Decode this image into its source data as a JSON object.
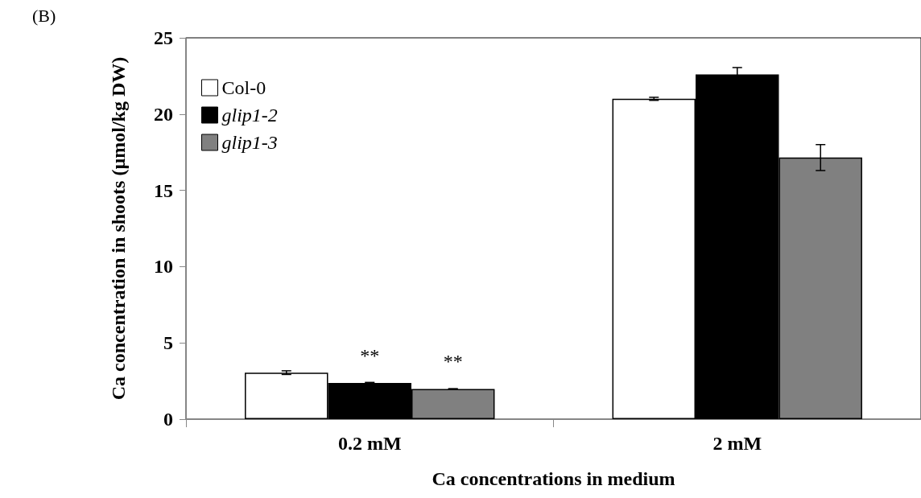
{
  "chart_data": {
    "type": "bar",
    "xlabel": "Ca concentrations in medium",
    "ylabel": "Ca concentration in shoots (µmol/kg DW)",
    "annotations": [
      "(B)"
    ],
    "categories": [
      "0.2 mM",
      "2 mM"
    ],
    "series": [
      {
        "name": "Col-0",
        "color": "#ffffff",
        "values": [
          3.05,
          21.0
        ],
        "errors": [
          0.12,
          0.1
        ]
      },
      {
        "name": "glip1-2",
        "color": "#000000",
        "values": [
          2.38,
          22.6
        ],
        "errors": [
          0.03,
          0.45
        ],
        "value_labels": [
          "**",
          null
        ]
      },
      {
        "name": "glip1-3",
        "color": "#808080",
        "values": [
          1.98,
          17.15
        ],
        "errors": [
          0.02,
          0.85
        ],
        "value_labels": [
          "**",
          null
        ]
      }
    ],
    "ylim": [
      0,
      25
    ],
    "yticks": [
      0,
      5,
      10,
      15,
      20,
      25
    ],
    "grid": false,
    "legend": "top left"
  }
}
